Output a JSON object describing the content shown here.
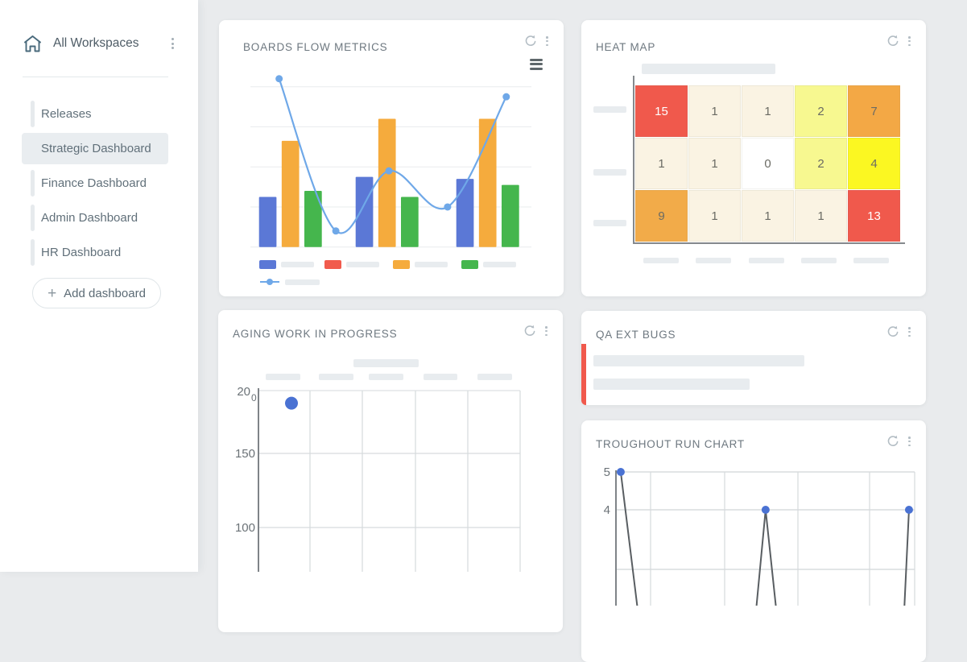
{
  "sidebar": {
    "workspace": {
      "label": "All Workspaces"
    },
    "items": [
      {
        "label": "Releases"
      },
      {
        "label": "Strategic Dashboard"
      },
      {
        "label": "Finance Dashboard"
      },
      {
        "label": "Admin Dashboard"
      },
      {
        "label": "HR Dashboard"
      }
    ],
    "active_item": "Strategic Dashboard",
    "add_button_label": "Add dashboard"
  },
  "cards": {
    "boards": {
      "title": "BOARDS FLOW METRICS"
    },
    "heat": {
      "title": "HEAT MAP"
    },
    "aging": {
      "title": "AGING WORK IN PROGRESS"
    },
    "qa": {
      "title": "QA EXT BUGS",
      "accent_color": "#f0594c",
      "content": "placeholder-bars"
    },
    "run": {
      "title": "TROUGHOUT RUN CHART"
    }
  },
  "colors": {
    "canvas_bg": "#e9ebed",
    "card_bg": "#ffffff",
    "skeleton": "#e8ecef",
    "axis_dark": "#85898d",
    "grid_light": "#d6dadd"
  },
  "chart_data": [
    {
      "id": "boards_flow_metrics",
      "type": "bar",
      "title": "BOARDS FLOW METRICS",
      "categories": [
        "group-1",
        "group-2",
        "group-3"
      ],
      "series": [
        {
          "name": "series-blue",
          "color": "#5b78d6",
          "values": [
            1.25,
            1.75,
            1.7
          ]
        },
        {
          "name": "series-orange",
          "color": "#f5ab3d",
          "values": [
            2.65,
            3.2,
            3.2
          ]
        },
        {
          "name": "series-green",
          "color": "#45b64d",
          "values": [
            1.4,
            1.25,
            1.55
          ]
        }
      ],
      "line_overlay": {
        "name": "trend-line",
        "color": "#6fa8e8",
        "points": [
          {
            "fx": 0.097,
            "v": 4.2
          },
          {
            "fx": 0.3,
            "v": 0.4
          },
          {
            "fx": 0.49,
            "v": 1.9
          },
          {
            "fx": 0.7,
            "v": 1.0
          },
          {
            "fx": 0.91,
            "v": 3.75
          }
        ]
      },
      "gridlines": 5,
      "ylim": [
        0,
        4.25
      ],
      "legend": {
        "swatch_colors": [
          "#5b78d6",
          "#f15b4d",
          "#f5ab3d",
          "#45b64d"
        ],
        "line_color": "#6fa8e8",
        "labels": "placeholder-bars"
      }
    },
    {
      "id": "heat_map",
      "type": "heatmap",
      "title": "HEAT MAP",
      "rows": [
        [
          15,
          1,
          1,
          2,
          7
        ],
        [
          1,
          1,
          0,
          2,
          4
        ],
        [
          9,
          1,
          1,
          1,
          13
        ]
      ],
      "cell_colors": [
        [
          "#f0594c",
          "#faf3e3",
          "#faf3e3",
          "#f7f890",
          "#f3a845"
        ],
        [
          "#faf3e3",
          "#faf3e3",
          "#ffffff",
          "#f7f890",
          "#fbf722"
        ],
        [
          "#f2ab49",
          "#faf3e3",
          "#faf3e3",
          "#faf3e3",
          "#f0594c"
        ]
      ],
      "header": "placeholder-bar",
      "row_labels": "placeholder-bars",
      "col_labels": "placeholder-bars"
    },
    {
      "id": "aging_wip",
      "type": "scatter",
      "title": "AGING WORK IN PROGRESS",
      "y_ticks": [
        "200",
        "150",
        "100"
      ],
      "columns": 5,
      "points": [
        {
          "col": 0,
          "value": 190
        }
      ],
      "point_color": "#4a72d3",
      "chart_header": "placeholder-bar",
      "x_labels": "placeholder-bars"
    },
    {
      "id": "run_chart",
      "type": "line",
      "title": "TROUGHOUT RUN CHART",
      "y_ticks": [
        "5",
        "4"
      ],
      "ylim": [
        0,
        5
      ],
      "points": [
        {
          "fx": 0.016,
          "v": 5
        },
        {
          "fx": 0.094,
          "v": 0
        },
        {
          "fx": 0.453,
          "v": 0
        },
        {
          "fx": 0.501,
          "v": 4
        },
        {
          "fx": 0.555,
          "v": 0
        },
        {
          "fx": 0.957,
          "v": 0
        },
        {
          "fx": 0.981,
          "v": 4
        }
      ],
      "line_color": "#595e62",
      "point_color": "#4a72d3"
    }
  ]
}
